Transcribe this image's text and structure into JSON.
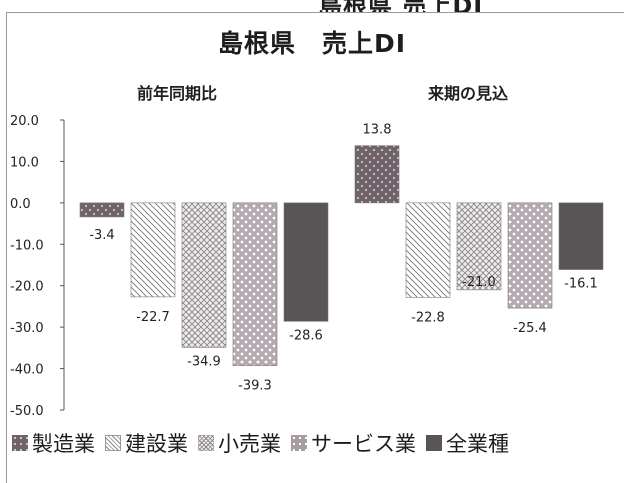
{
  "header_fragment": "島根県  売上DI",
  "chart_data": {
    "type": "bar",
    "title": "島根県　売上DI",
    "groups": [
      "前年同期比",
      "来期の見込"
    ],
    "series": [
      {
        "name": "製造業",
        "values": [
          -3.4,
          13.8
        ],
        "labels": [
          "-3.4",
          "13.8"
        ],
        "color": "#7d6f75",
        "pattern": "dots-dark"
      },
      {
        "name": "建設業",
        "values": [
          -22.7,
          -22.8
        ],
        "labels": [
          "-22.7",
          "-22.8"
        ],
        "color": "#ffffff",
        "pattern": "diagonal"
      },
      {
        "name": "小売業",
        "values": [
          -34.9,
          -21.0
        ],
        "labels": [
          "-34.9",
          "-21.0"
        ],
        "color": "#c9c4c6",
        "pattern": "crosshatch"
      },
      {
        "name": "サービス業",
        "values": [
          -39.3,
          -25.4
        ],
        "labels": [
          "-39.3",
          "-25.4"
        ],
        "color": "#b7aeb2",
        "pattern": "dots-light"
      },
      {
        "name": "全業種",
        "values": [
          -28.6,
          -16.1
        ],
        "labels": [
          "-28.6",
          "-16.1"
        ],
        "color": "#5a5557",
        "pattern": "solid"
      }
    ],
    "y_ticks": [
      "20.0",
      "10.0",
      "0.0",
      "-10.0",
      "-20.0",
      "-30.0",
      "-40.0",
      "-50.0"
    ],
    "ylim": [
      -50,
      20
    ],
    "legend_position": "bottom",
    "grid": false
  }
}
